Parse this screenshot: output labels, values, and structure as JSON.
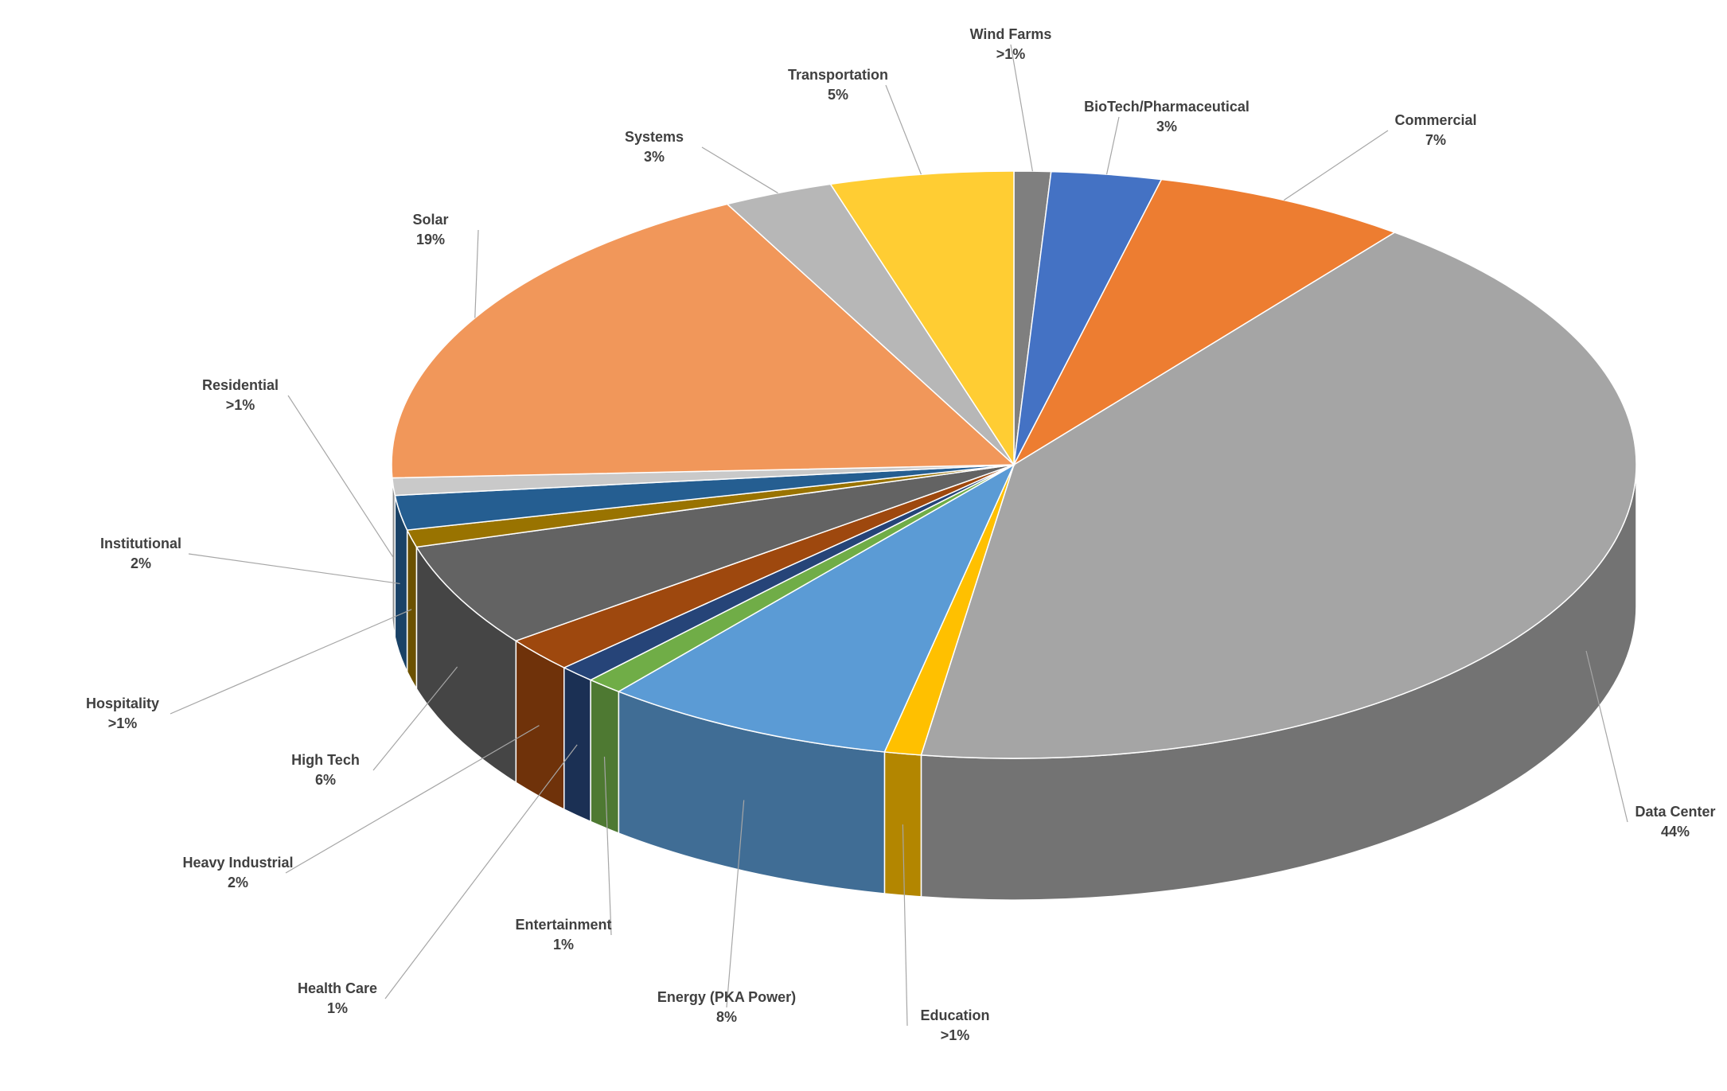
{
  "chart_data": {
    "type": "pie",
    "categories": [
      "Wind Farms",
      "BioTech/Pharmaceutical",
      "Commercial",
      "Data Center",
      "Education",
      "Energy (PKA Power)",
      "Entertainment",
      "Health Care",
      "Heavy Industrial",
      "High Tech",
      "Hospitality",
      "Institutional",
      "Residential",
      "Solar",
      "Systems",
      "Transportation"
    ],
    "values": [
      1,
      3,
      7,
      44,
      1,
      8,
      1,
      1,
      2,
      6,
      1,
      2,
      1,
      19,
      3,
      5
    ],
    "value_labels": [
      ">1%",
      "3%",
      "7%",
      "44%",
      ">1%",
      "8%",
      "1%",
      "1%",
      "2%",
      "6%",
      ">1%",
      "2%",
      ">1%",
      "19%",
      "3%",
      "5%"
    ],
    "colors": [
      "#7f7f7f",
      "#4472c4",
      "#ed7d31",
      "#a5a5a5",
      "#ffc000",
      "#5b9bd5",
      "#70ad47",
      "#264478",
      "#9e480e",
      "#636363",
      "#997300",
      "#255e91",
      "#c9c9c9",
      "#f1975a",
      "#b7b7b7",
      "#ffcd33"
    ]
  }
}
